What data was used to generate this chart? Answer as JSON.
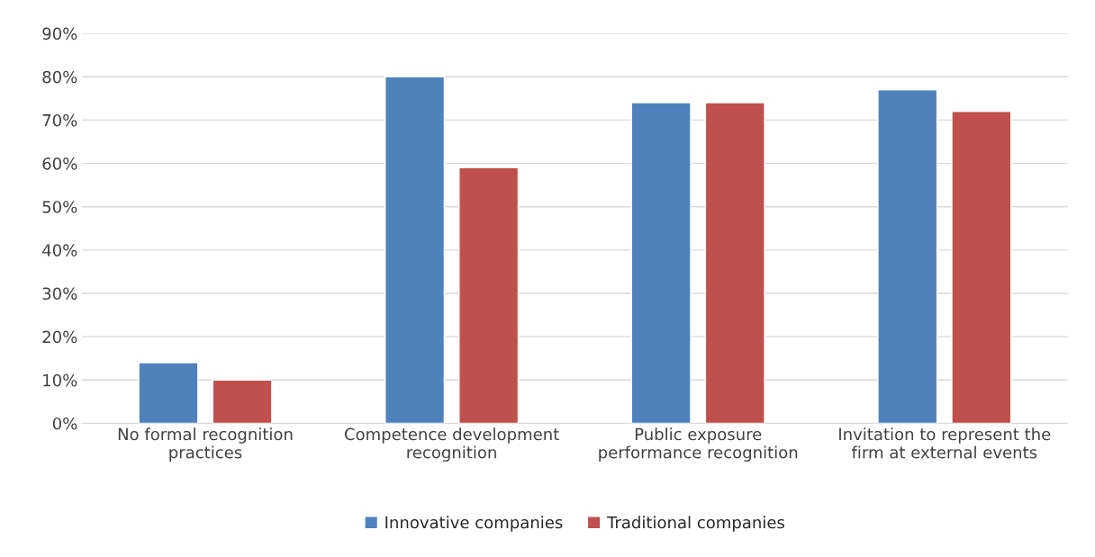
{
  "chart_data": {
    "type": "bar",
    "categories": [
      "No formal recognition\npractices",
      "Competence development\nrecognition",
      "Public exposure\nperformance recognition",
      "Invitation to represent the\nfirm at external events"
    ],
    "series": [
      {
        "name": "Innovative companies",
        "color": "#4f81bd",
        "values": [
          14,
          80,
          74,
          77
        ]
      },
      {
        "name": "Traditional companies",
        "color": "#c0504d",
        "values": [
          10,
          59,
          74,
          72
        ]
      }
    ],
    "ylim": [
      0,
      90
    ],
    "yticks": [
      {
        "value": 0,
        "label": "0%"
      },
      {
        "value": 10,
        "label": "10%"
      },
      {
        "value": 20,
        "label": "20%"
      },
      {
        "value": 30,
        "label": "30%"
      },
      {
        "value": 40,
        "label": "40%"
      },
      {
        "value": 50,
        "label": "50%"
      },
      {
        "value": 60,
        "label": "60%"
      },
      {
        "value": 70,
        "label": "70%"
      },
      {
        "value": 80,
        "label": "80%"
      },
      {
        "value": 90,
        "label": "90%"
      }
    ],
    "grid": "y",
    "legend": "bottom"
  }
}
